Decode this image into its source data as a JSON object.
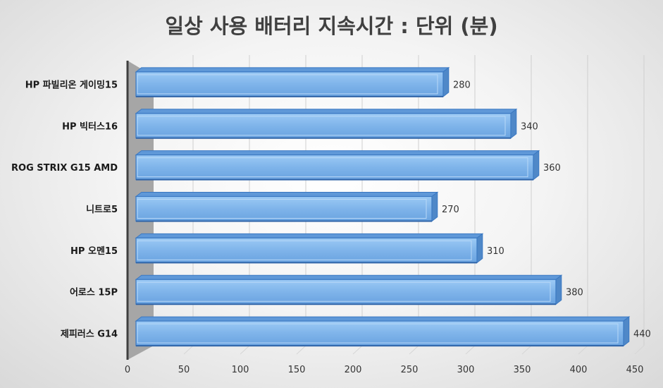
{
  "chart_data": {
    "type": "bar",
    "orientation": "horizontal",
    "title": "일상 사용 배터리 지속시간 : 단위 (분)",
    "categories": [
      "HP 파빌리온 게이밍15",
      "HP 빅터스16",
      "ROG STRIX G15 AMD",
      "니트로5",
      "HP 오멘15",
      "어로스 15P",
      "제피러스 G14"
    ],
    "values": [
      280,
      340,
      360,
      270,
      310,
      380,
      440
    ],
    "xlim": [
      0,
      450
    ],
    "xticks": [
      "0",
      "50",
      "100",
      "150",
      "200",
      "250",
      "300",
      "350",
      "400",
      "450"
    ],
    "grid": true,
    "style": "3d",
    "bar_color": "#7fb4ea",
    "bar_edge_color": "#3a78c2"
  }
}
